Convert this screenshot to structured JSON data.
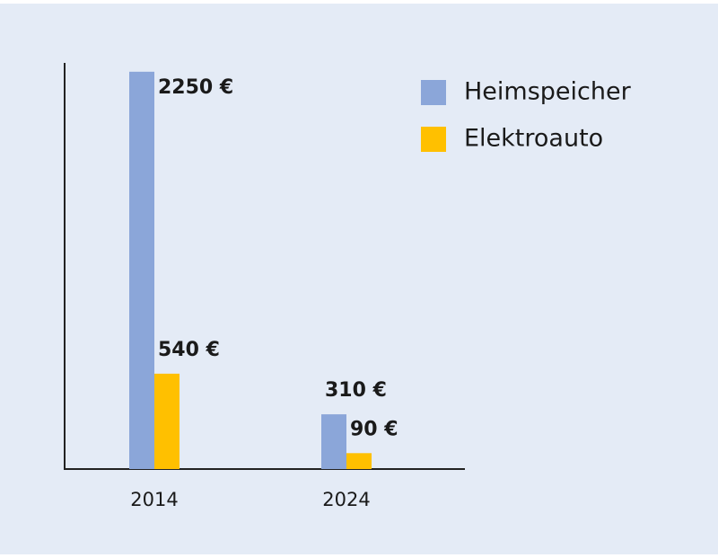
{
  "chart_data": {
    "type": "bar",
    "categories": [
      "2014",
      "2024"
    ],
    "series": [
      {
        "name": "Heimspeicher",
        "color": "#8ba6d9",
        "values": [
          2250,
          310
        ],
        "value_labels": [
          "2250 €",
          "310 €"
        ]
      },
      {
        "name": "Elektroauto",
        "color": "#ffc000",
        "values": [
          540,
          90
        ],
        "value_labels": [
          "540 €",
          "90 €"
        ]
      }
    ],
    "ylim": [
      0,
      2300
    ],
    "legend": "top-right"
  }
}
